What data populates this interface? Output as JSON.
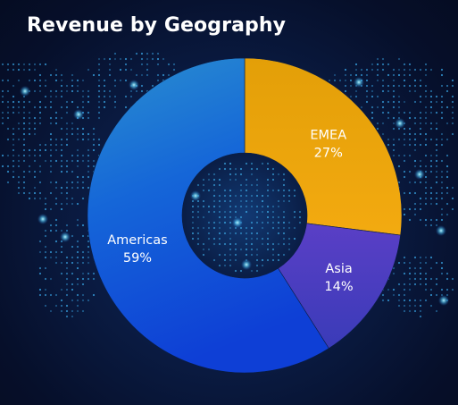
{
  "chart_data": {
    "type": "pie",
    "title": "Revenue by Geography",
    "donut": true,
    "slices": [
      {
        "label": "EMEA",
        "value": 27,
        "display": "27%",
        "color": "#f0a300"
      },
      {
        "label": "Asia",
        "value": 14,
        "display": "14%",
        "color": "#4a3fc0"
      },
      {
        "label": "Americas",
        "value": 59,
        "display": "59%",
        "color": "#1452d8"
      }
    ]
  }
}
